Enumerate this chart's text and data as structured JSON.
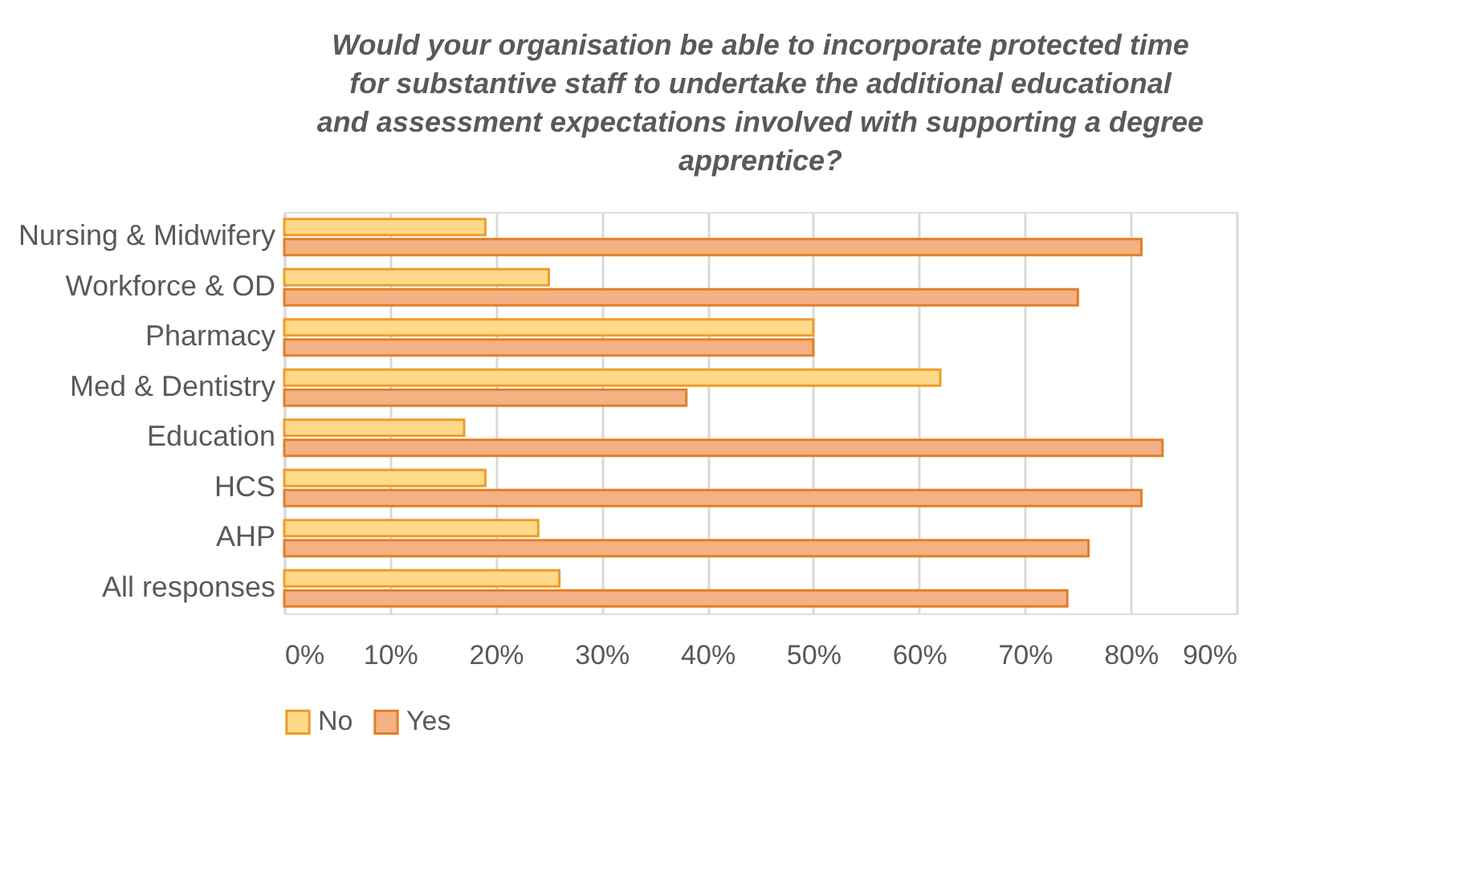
{
  "chart_data": {
    "type": "bar",
    "orientation": "horizontal",
    "title": "Would your organisation be able to incorporate protected time for substantive staff to undertake the additional educational and assessment expectations involved with  supporting a degree apprentice?",
    "categories": [
      "Nursing & Midwifery",
      "Workforce & OD",
      "Pharmacy",
      "Med & Dentistry",
      "Education",
      "HCS",
      "AHP",
      "All responses"
    ],
    "series": [
      {
        "name": "No",
        "color": "#ffd98a",
        "values": [
          19,
          25,
          50,
          62,
          17,
          19,
          24,
          26
        ]
      },
      {
        "name": "Yes",
        "color": "#f4b183",
        "values": [
          81,
          75,
          50,
          38,
          83,
          81,
          76,
          74
        ]
      }
    ],
    "xlim": [
      0,
      90
    ],
    "xticks": [
      {
        "value": 0,
        "label": "0%"
      },
      {
        "value": 10,
        "label": "10%"
      },
      {
        "value": 20,
        "label": "20%"
      },
      {
        "value": 30,
        "label": "30%"
      },
      {
        "value": 40,
        "label": "40%"
      },
      {
        "value": 50,
        "label": "50%"
      },
      {
        "value": 60,
        "label": "60%"
      },
      {
        "value": 70,
        "label": "70%"
      },
      {
        "value": 80,
        "label": "80%"
      },
      {
        "value": 90,
        "label": "90%"
      }
    ],
    "grid": "x",
    "legend": "bottom"
  }
}
